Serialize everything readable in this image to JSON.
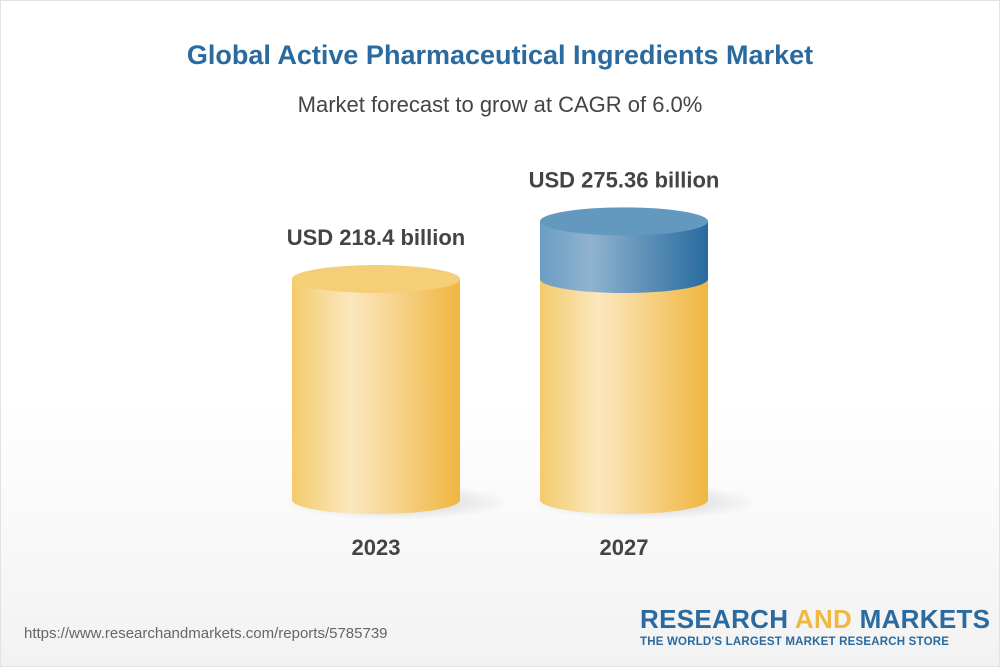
{
  "title": "Global Active Pharmaceutical Ingredients Market",
  "subtitle": "Market forecast to grow at CAGR of 6.0%",
  "chart_data": {
    "type": "bar",
    "style": "3d-cylinder",
    "categories": [
      "2023",
      "2027"
    ],
    "values": [
      218.4,
      275.36
    ],
    "value_labels": [
      "USD 218.4 billion",
      "USD 275.36 billion"
    ],
    "unit": "USD billion",
    "grid": false,
    "colors": {
      "base": "#f0b840",
      "growth": "#2a6a9e"
    }
  },
  "footer": {
    "url": "https://www.researchandmarkets.com/reports/5785739",
    "logo_part1": "RESEARCH ",
    "logo_part2": "AND",
    "logo_part3": " MARKETS",
    "tagline": "THE WORLD'S LARGEST MARKET RESEARCH STORE"
  }
}
